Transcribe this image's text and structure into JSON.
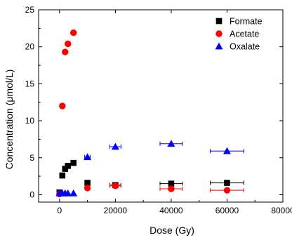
{
  "chart_data": {
    "type": "scatter",
    "title": "",
    "xlabel": "Dose (Gy)",
    "ylabel": "Concentration (μmol/L)",
    "xlim": [
      -7500,
      80000
    ],
    "ylim": [
      -1,
      25
    ],
    "xticks": [
      0,
      20000,
      40000,
      60000,
      80000
    ],
    "xtick_labels": [
      "0",
      "20000",
      "40000",
      "60000",
      "80000"
    ],
    "yticks": [
      0,
      5,
      10,
      15,
      20,
      25
    ],
    "ytick_labels": [
      "0",
      "5",
      "10",
      "15",
      "20",
      "25"
    ],
    "grid": false,
    "legend_position": "top-right",
    "series": [
      {
        "name": "Formate",
        "marker": "square",
        "color": "#000000",
        "points": [
          {
            "x": 0,
            "y": 0.3,
            "xerr": 0
          },
          {
            "x": 1000,
            "y": 2.6,
            "xerr": 0
          },
          {
            "x": 2000,
            "y": 3.5,
            "xerr": 0
          },
          {
            "x": 3000,
            "y": 3.9,
            "xerr": 0
          },
          {
            "x": 5000,
            "y": 4.3,
            "xerr": 0
          },
          {
            "x": 10000,
            "y": 1.6,
            "xerr": 0
          },
          {
            "x": 20000,
            "y": 1.3,
            "xerr": 2000
          },
          {
            "x": 40000,
            "y": 1.5,
            "xerr": 4000
          },
          {
            "x": 60000,
            "y": 1.6,
            "xerr": 6000
          }
        ]
      },
      {
        "name": "Acetate",
        "marker": "circle",
        "color": "#ff0000",
        "points": [
          {
            "x": 0,
            "y": 0.1,
            "xerr": 0
          },
          {
            "x": 1000,
            "y": 12.0,
            "xerr": 0
          },
          {
            "x": 2000,
            "y": 19.3,
            "xerr": 0
          },
          {
            "x": 3000,
            "y": 20.4,
            "xerr": 0
          },
          {
            "x": 5000,
            "y": 21.9,
            "xerr": 0
          },
          {
            "x": 10000,
            "y": 0.9,
            "xerr": 0
          },
          {
            "x": 20000,
            "y": 1.2,
            "xerr": 2000
          },
          {
            "x": 40000,
            "y": 0.8,
            "xerr": 4000
          },
          {
            "x": 60000,
            "y": 0.6,
            "xerr": 6000
          }
        ]
      },
      {
        "name": "Oxalate",
        "marker": "triangle",
        "color": "#0000ff",
        "points": [
          {
            "x": 0,
            "y": 0.2,
            "xerr": 0
          },
          {
            "x": 1000,
            "y": 0.2,
            "xerr": 0
          },
          {
            "x": 2000,
            "y": 0.2,
            "xerr": 0
          },
          {
            "x": 3000,
            "y": 0.2,
            "xerr": 0
          },
          {
            "x": 5000,
            "y": 0.2,
            "xerr": 0
          },
          {
            "x": 10000,
            "y": 5.1,
            "xerr": 1000
          },
          {
            "x": 20000,
            "y": 6.5,
            "xerr": 2000
          },
          {
            "x": 40000,
            "y": 6.9,
            "xerr": 4000
          },
          {
            "x": 60000,
            "y": 5.9,
            "xerr": 6000
          }
        ]
      }
    ]
  }
}
